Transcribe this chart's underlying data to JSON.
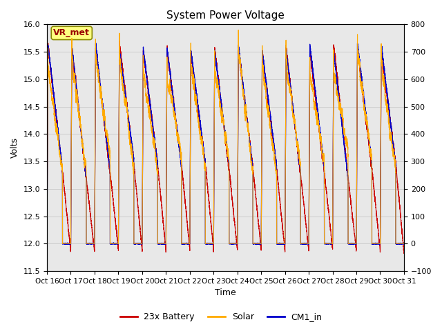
{
  "title": "System Power Voltage",
  "xlabel": "Time",
  "ylabel_left": "Volts",
  "ylabel_right": "",
  "ylim_left": [
    11.5,
    16.0
  ],
  "ylim_right": [
    -100,
    800
  ],
  "yticks_left": [
    11.5,
    12.0,
    12.5,
    13.0,
    13.5,
    14.0,
    14.5,
    15.0,
    15.5,
    16.0
  ],
  "yticks_right": [
    -100,
    0,
    100,
    200,
    300,
    400,
    500,
    600,
    700,
    800
  ],
  "xtick_labels": [
    "Oct 16",
    "Oct 17",
    "Oct 18",
    "Oct 19",
    "Oct 20",
    "Oct 21",
    "Oct 22",
    "Oct 23",
    "Oct 24",
    "Oct 25",
    "Oct 26",
    "Oct 27",
    "Oct 28",
    "Oct 29",
    "Oct 30",
    "Oct 31"
  ],
  "n_cycles": 15,
  "legend_labels": [
    "23x Battery",
    "Solar",
    "CM1_in"
  ],
  "legend_colors": [
    "#cc0000",
    "#ffaa00",
    "#0000cc"
  ],
  "annotation_text": "VR_met",
  "annotation_bg": "#ffff80",
  "annotation_border": "#888800",
  "battery_color": "#cc0000",
  "solar_color": "#ffaa00",
  "cm1_color": "#0000cc",
  "grid_color": "#cccccc",
  "bg_color": "#e8e8e8"
}
